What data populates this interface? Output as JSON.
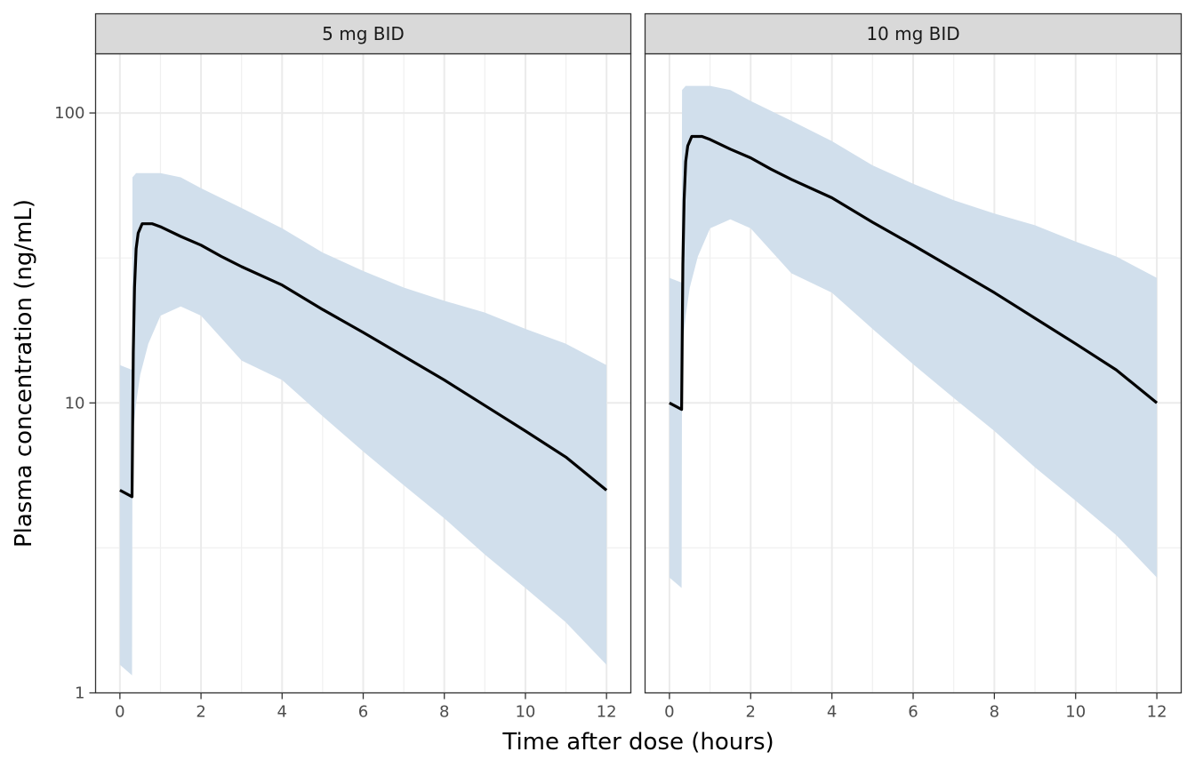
{
  "chart_data": {
    "type": "line",
    "xlabel": "Time after dose (hours)",
    "ylabel": "Plasma concentration (ng/mL)",
    "y_scale": "log10",
    "ylim": [
      1,
      160
    ],
    "xlim": [
      -0.6,
      12.6
    ],
    "x_ticks": [
      0,
      2,
      4,
      6,
      8,
      10,
      12
    ],
    "y_ticks": [
      1,
      10,
      100
    ],
    "y_tick_labels": [
      "1",
      "10",
      "100"
    ],
    "grid": true,
    "colors": {
      "median_line": "#000000",
      "ribbon": "#d1dfec",
      "strip_bg": "#d9d9d9"
    },
    "panels": [
      {
        "title": "5 mg BID",
        "median": {
          "x": [
            0,
            0.3,
            0.33,
            0.36,
            0.4,
            0.45,
            0.5,
            0.55,
            0.6,
            0.7,
            0.8,
            1,
            1.5,
            2,
            2.5,
            3,
            4,
            5,
            6,
            7,
            8,
            9,
            10,
            11,
            12
          ],
          "y": [
            5.0,
            4.75,
            15.0,
            25.0,
            34.0,
            38.5,
            40.0,
            41.5,
            41.5,
            41.5,
            41.5,
            40.5,
            37.5,
            35.0,
            32.0,
            29.5,
            25.5,
            21.0,
            17.5,
            14.5,
            12.0,
            9.8,
            8.0,
            6.5,
            5.0
          ]
        },
        "ribbon": {
          "x": [
            0,
            0.3,
            0.31,
            0.4,
            0.5,
            0.7,
            1,
            1.5,
            2,
            3,
            4,
            5,
            6,
            7,
            8,
            9,
            10,
            11,
            12
          ],
          "lower": [
            1.25,
            1.15,
            7.5,
            10.0,
            12.5,
            16.0,
            20.0,
            21.5,
            20.0,
            14.0,
            12.0,
            9.0,
            6.8,
            5.2,
            4.0,
            3.0,
            2.3,
            1.75,
            1.25
          ],
          "upper": [
            13.5,
            13.0,
            60.0,
            62.0,
            62.0,
            62.0,
            62.0,
            60.0,
            55.0,
            47.0,
            40.0,
            33.0,
            28.5,
            25.0,
            22.5,
            20.5,
            18.0,
            16.0,
            13.5
          ]
        }
      },
      {
        "title": "10 mg BID",
        "median": {
          "x": [
            0,
            0.3,
            0.33,
            0.36,
            0.4,
            0.45,
            0.5,
            0.55,
            0.6,
            0.7,
            0.8,
            1,
            1.5,
            2,
            2.5,
            3,
            4,
            5,
            6,
            7,
            8,
            9,
            10,
            11,
            12
          ],
          "y": [
            10.0,
            9.5,
            30.0,
            50.0,
            68.0,
            77.0,
            80.0,
            83.0,
            83.0,
            83.0,
            83.0,
            81.0,
            75.0,
            70.0,
            64.0,
            59.0,
            51.0,
            42.0,
            35.0,
            29.0,
            24.0,
            19.6,
            16.0,
            13.0,
            10.0
          ]
        },
        "ribbon": {
          "x": [
            0,
            0.3,
            0.31,
            0.4,
            0.5,
            0.7,
            1,
            1.5,
            2,
            3,
            4,
            5,
            6,
            7,
            8,
            9,
            10,
            11,
            12
          ],
          "lower": [
            2.5,
            2.3,
            15.0,
            20.0,
            25.0,
            32.0,
            40.0,
            43.0,
            40.0,
            28.0,
            24.0,
            18.0,
            13.6,
            10.4,
            8.0,
            6.0,
            4.6,
            3.5,
            2.5
          ],
          "upper": [
            27.0,
            26.0,
            120.0,
            124.0,
            124.0,
            124.0,
            124.0,
            120.0,
            110.0,
            94.0,
            80.0,
            66.0,
            57.0,
            50.0,
            45.0,
            41.0,
            36.0,
            32.0,
            27.0
          ]
        }
      }
    ]
  }
}
